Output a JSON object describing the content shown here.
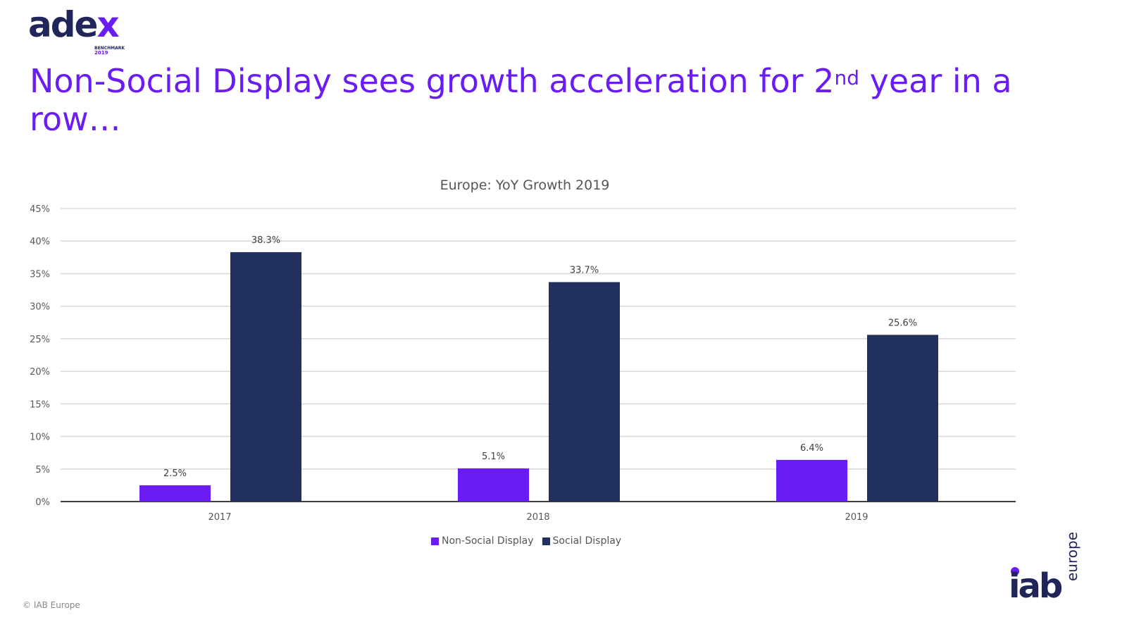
{
  "header": {
    "logo_text": "adex",
    "logo_sub": "BENCHMARK",
    "logo_year": "2019",
    "title_pre": "Non-Social Display sees growth acceleration for 2",
    "title_sup": "nd",
    "title_post": " year in a row…"
  },
  "footer": {
    "copyright": "© IAB Europe",
    "iab_logo": "iab",
    "iab_logo_sub": "europe"
  },
  "colors": {
    "non_social": "#6a1cf5",
    "social": "#21305c"
  },
  "chart_data": {
    "type": "bar",
    "title": "Europe: YoY Growth 2019",
    "categories": [
      "2017",
      "2018",
      "2019"
    ],
    "series": [
      {
        "name": "Non-Social Display",
        "values": [
          2.5,
          5.1,
          6.4
        ],
        "labels": [
          "2.5%",
          "5.1%",
          "6.4%"
        ]
      },
      {
        "name": "Social Display",
        "values": [
          38.3,
          33.7,
          25.6
        ],
        "labels": [
          "38.3%",
          "33.7%",
          "25.6%"
        ]
      }
    ],
    "ylim": [
      0,
      45
    ],
    "yticks": [
      "0%",
      "5%",
      "10%",
      "15%",
      "20%",
      "25%",
      "30%",
      "35%",
      "40%",
      "45%"
    ],
    "grid": true,
    "legend": "bottom"
  }
}
